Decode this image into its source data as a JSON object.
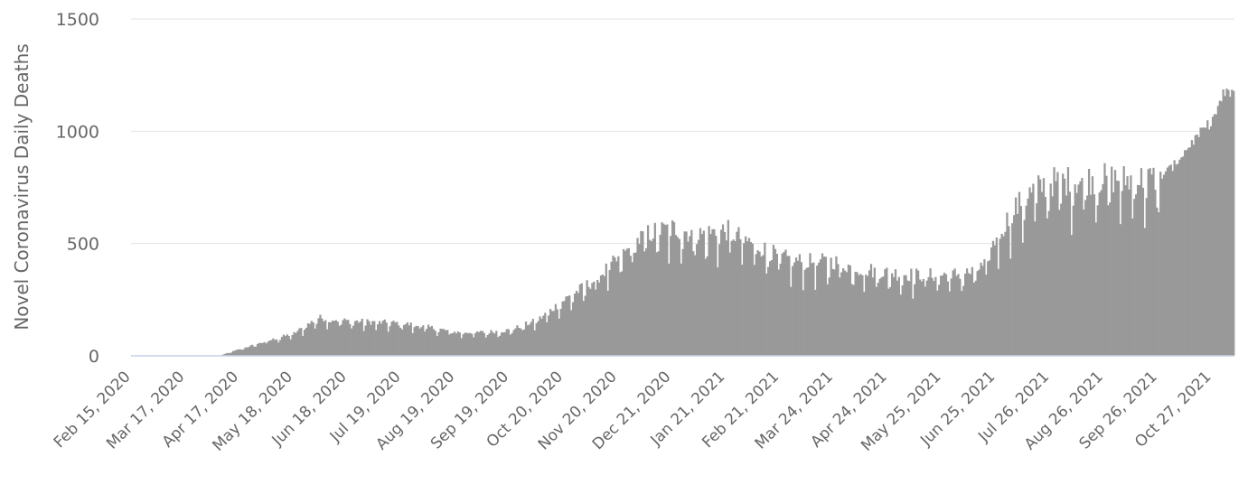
{
  "chart_data": {
    "type": "bar",
    "title": "",
    "ylabel": "Novel Coronavirus Daily Deaths",
    "xlabel": "",
    "ylim": [
      0,
      1500
    ],
    "yticks": [
      "0",
      "500",
      "1000",
      "1500"
    ],
    "grid": true,
    "legend": "none",
    "bar_color": "#999999",
    "x_range": [
      "2020-02-15",
      "2021-11-08"
    ],
    "xticks": [
      {
        "date": "2020-02-15",
        "label": "Feb 15, 2020"
      },
      {
        "date": "2020-03-17",
        "label": "Mar 17, 2020"
      },
      {
        "date": "2020-04-17",
        "label": "Apr 17, 2020"
      },
      {
        "date": "2020-05-18",
        "label": "May 18, 2020"
      },
      {
        "date": "2020-06-18",
        "label": "Jun 18, 2020"
      },
      {
        "date": "2020-07-19",
        "label": "Jul 19, 2020"
      },
      {
        "date": "2020-08-19",
        "label": "Aug 19, 2020"
      },
      {
        "date": "2020-09-19",
        "label": "Sep 19, 2020"
      },
      {
        "date": "2020-10-20",
        "label": "Oct 20, 2020"
      },
      {
        "date": "2020-11-20",
        "label": "Nov 20, 2020"
      },
      {
        "date": "2020-12-21",
        "label": "Dec 21, 2020"
      },
      {
        "date": "2021-01-21",
        "label": "Jan 21, 2021"
      },
      {
        "date": "2021-02-21",
        "label": "Feb 21, 2021"
      },
      {
        "date": "2021-03-24",
        "label": "Mar 24, 2021"
      },
      {
        "date": "2021-04-24",
        "label": "Apr 24, 2021"
      },
      {
        "date": "2021-05-25",
        "label": "May 25, 2021"
      },
      {
        "date": "2021-06-25",
        "label": "Jun 25, 2021"
      },
      {
        "date": "2021-07-26",
        "label": "Jul 26, 2021"
      },
      {
        "date": "2021-08-26",
        "label": "Aug 26, 2021"
      },
      {
        "date": "2021-09-26",
        "label": "Sep 26, 2021"
      },
      {
        "date": "2021-10-27",
        "label": "Oct 27, 2021"
      }
    ],
    "trend_points": [
      {
        "date": "2020-02-15",
        "value": 0
      },
      {
        "date": "2020-04-05",
        "value": 0
      },
      {
        "date": "2020-04-17",
        "value": 30
      },
      {
        "date": "2020-04-30",
        "value": 60
      },
      {
        "date": "2020-05-18",
        "value": 100
      },
      {
        "date": "2020-06-01",
        "value": 170
      },
      {
        "date": "2020-06-18",
        "value": 155
      },
      {
        "date": "2020-07-05",
        "value": 150
      },
      {
        "date": "2020-07-19",
        "value": 145
      },
      {
        "date": "2020-08-05",
        "value": 125
      },
      {
        "date": "2020-08-19",
        "value": 105
      },
      {
        "date": "2020-09-05",
        "value": 105
      },
      {
        "date": "2020-09-19",
        "value": 115
      },
      {
        "date": "2020-10-05",
        "value": 160
      },
      {
        "date": "2020-10-20",
        "value": 250
      },
      {
        "date": "2020-11-05",
        "value": 330
      },
      {
        "date": "2020-11-20",
        "value": 430
      },
      {
        "date": "2020-12-05",
        "value": 540
      },
      {
        "date": "2020-12-21",
        "value": 570
      },
      {
        "date": "2021-01-05",
        "value": 540
      },
      {
        "date": "2021-01-21",
        "value": 560
      },
      {
        "date": "2021-02-05",
        "value": 500
      },
      {
        "date": "2021-02-21",
        "value": 440
      },
      {
        "date": "2021-03-05",
        "value": 420
      },
      {
        "date": "2021-03-24",
        "value": 420
      },
      {
        "date": "2021-04-05",
        "value": 390
      },
      {
        "date": "2021-04-24",
        "value": 370
      },
      {
        "date": "2021-05-10",
        "value": 360
      },
      {
        "date": "2021-05-25",
        "value": 360
      },
      {
        "date": "2021-06-10",
        "value": 370
      },
      {
        "date": "2021-06-18",
        "value": 400
      },
      {
        "date": "2021-06-25",
        "value": 530
      },
      {
        "date": "2021-07-05",
        "value": 650
      },
      {
        "date": "2021-07-15",
        "value": 730
      },
      {
        "date": "2021-07-26",
        "value": 775
      },
      {
        "date": "2021-08-10",
        "value": 780
      },
      {
        "date": "2021-08-26",
        "value": 790
      },
      {
        "date": "2021-09-10",
        "value": 785
      },
      {
        "date": "2021-09-26",
        "value": 790
      },
      {
        "date": "2021-10-05",
        "value": 850
      },
      {
        "date": "2021-10-15",
        "value": 950
      },
      {
        "date": "2021-10-27",
        "value": 1050
      },
      {
        "date": "2021-11-02",
        "value": 1160
      },
      {
        "date": "2021-11-08",
        "value": 1180
      }
    ]
  }
}
